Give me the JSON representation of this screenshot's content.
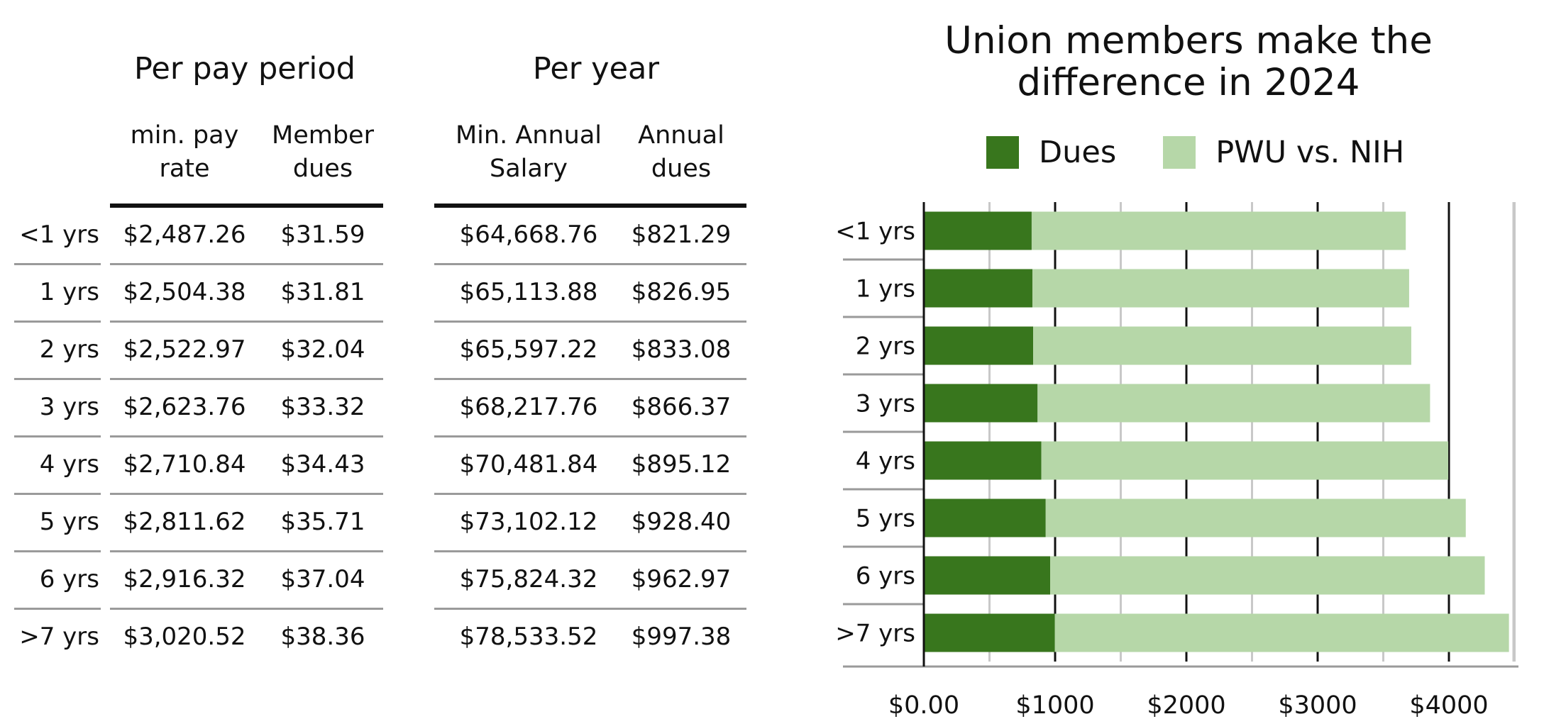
{
  "tables": {
    "per_pay_period": {
      "title": "Per pay period",
      "columns": [
        [
          "min. pay",
          "rate"
        ],
        [
          "Member",
          "dues"
        ]
      ]
    },
    "per_year": {
      "title": "Per year",
      "columns": [
        [
          "Min. Annual",
          "Salary"
        ],
        [
          "Annual",
          "dues"
        ]
      ]
    },
    "rows": [
      {
        "label": "<1 yrs",
        "pay": "$2,487.26",
        "dues": "$31.59",
        "salary": "$64,668.76",
        "annual_dues": "$821.29"
      },
      {
        "label": "1 yrs",
        "pay": "$2,504.38",
        "dues": "$31.81",
        "salary": "$65,113.88",
        "annual_dues": "$826.95"
      },
      {
        "label": "2 yrs",
        "pay": "$2,522.97",
        "dues": "$32.04",
        "salary": "$65,597.22",
        "annual_dues": "$833.08"
      },
      {
        "label": "3 yrs",
        "pay": "$2,623.76",
        "dues": "$33.32",
        "salary": "$68,217.76",
        "annual_dues": "$866.37"
      },
      {
        "label": "4 yrs",
        "pay": "$2,710.84",
        "dues": "$34.43",
        "salary": "$70,481.84",
        "annual_dues": "$895.12"
      },
      {
        "label": "5 yrs",
        "pay": "$2,811.62",
        "dues": "$35.71",
        "salary": "$73,102.12",
        "annual_dues": "$928.40"
      },
      {
        "label": "6 yrs",
        "pay": "$2,916.32",
        "dues": "$37.04",
        "salary": "$75,824.32",
        "annual_dues": "$962.97"
      },
      {
        "label": ">7 yrs",
        "pay": "$3,020.52",
        "dues": "$38.36",
        "salary": "$78,533.52",
        "annual_dues": "$997.38"
      }
    ]
  },
  "chart_data": {
    "type": "bar",
    "orientation": "horizontal",
    "stacked": true,
    "title": [
      "Union members make the",
      "difference in 2024"
    ],
    "categories": [
      "<1 yrs",
      "1 yrs",
      "2 yrs",
      "3 yrs",
      "4 yrs",
      "5 yrs",
      "6 yrs",
      ">7 yrs"
    ],
    "series": [
      {
        "name": "Dues",
        "color": "#38761d",
        "values": [
          821.29,
          826.95,
          833.08,
          866.37,
          895.12,
          928.4,
          962.97,
          997.38
        ]
      },
      {
        "name": "PWU vs. NIH",
        "color": "#b6d7a8",
        "values": [
          2850,
          2870,
          2880,
          2990,
          3100,
          3200,
          3310,
          3460
        ]
      }
    ],
    "xlim": [
      0,
      4500
    ],
    "xticks": [
      0,
      1000,
      2000,
      3000,
      4000
    ],
    "xtick_labels": [
      "$0.00",
      "$1000",
      "$2000",
      "$3000",
      "$4000"
    ],
    "grid": true,
    "legend": "top"
  }
}
